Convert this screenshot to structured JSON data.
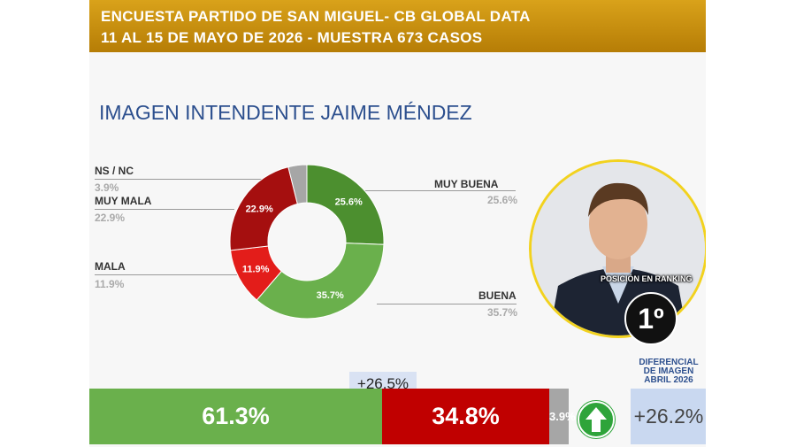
{
  "header": {
    "line1": "ENCUESTA PARTIDO DE SAN MIGUEL- CB GLOBAL DATA",
    "line2": "11 AL 15 DE MAYO DE 2026 - MUESTRA 673 CASOS"
  },
  "title": "IMAGEN INTENDENTE  JAIME MÉNDEZ",
  "chart_data": {
    "type": "pie",
    "title": "IMAGEN INTENDENTE  JAIME MÉNDEZ",
    "categories": [
      "MUY BUENA",
      "BUENA",
      "MALA",
      "MUY MALA",
      "NS / NC"
    ],
    "values": [
      25.6,
      35.7,
      11.9,
      22.9,
      3.9
    ],
    "labels": [
      "25.6%",
      "35.7%",
      "11.9%",
      "22.9%",
      "3.9%"
    ],
    "colors": [
      "#4c8f2f",
      "#6ab04c",
      "#e31d1a",
      "#a50f0f",
      "#a6a6a6"
    ],
    "donut": true,
    "summary": {
      "positive": "61.3%",
      "negative": "34.8%",
      "nsnc": "3.9%",
      "difference": "+26,5%",
      "colors": {
        "positive": "#6ab04c",
        "negative": "#c00000",
        "nsnc": "#a6a6a6"
      }
    }
  },
  "ranking": {
    "label": "POSICIÓN EN RANKING",
    "value": "1º"
  },
  "diferencial": {
    "label_lines": [
      "DIFERENCIAL",
      "DE IMAGEN",
      "ABRIL 2026"
    ],
    "value": "+26.2%",
    "trend": "up-arrow-icon"
  }
}
